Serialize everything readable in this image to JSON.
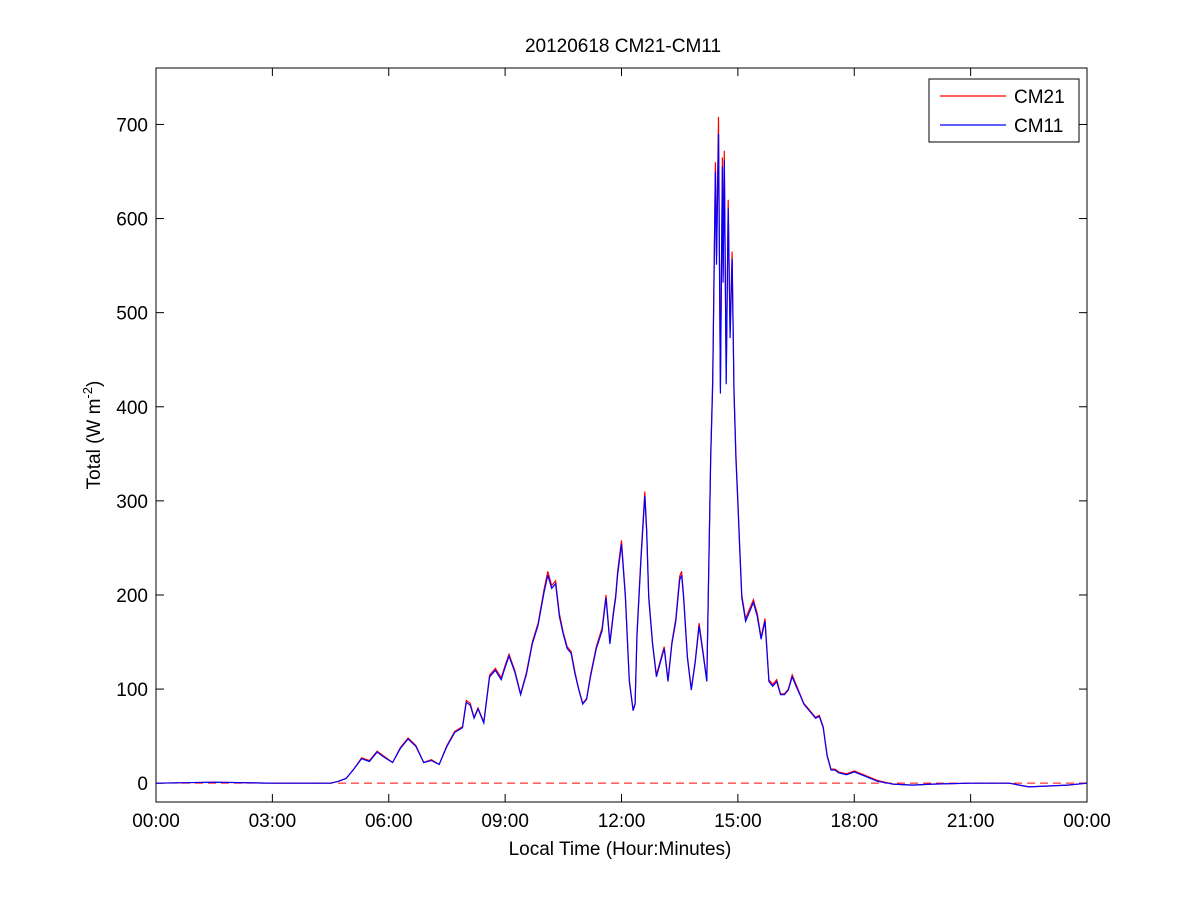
{
  "chart_data": {
    "type": "line",
    "title": "20120618 CM21-CM11",
    "xlabel": "Local Time (Hour:Minutes)",
    "ylabel": "Total (W m^-2)",
    "ylabel_parts": {
      "main": "Total (W m",
      "superscript": "-2",
      "close": ")"
    },
    "x_unit": "hours",
    "xlim": [
      0,
      24
    ],
    "ylim": [
      -20,
      760
    ],
    "x_ticks": [
      {
        "value": 0,
        "label": "00:00"
      },
      {
        "value": 3,
        "label": "03:00"
      },
      {
        "value": 6,
        "label": "06:00"
      },
      {
        "value": 9,
        "label": "09:00"
      },
      {
        "value": 12,
        "label": "12:00"
      },
      {
        "value": 15,
        "label": "15:00"
      },
      {
        "value": 18,
        "label": "18:00"
      },
      {
        "value": 21,
        "label": "21:00"
      },
      {
        "value": 24,
        "label": "00:00"
      }
    ],
    "y_ticks": [
      {
        "value": 0,
        "label": "0"
      },
      {
        "value": 100,
        "label": "100"
      },
      {
        "value": 200,
        "label": "200"
      },
      {
        "value": 300,
        "label": "300"
      },
      {
        "value": 400,
        "label": "400"
      },
      {
        "value": 500,
        "label": "500"
      },
      {
        "value": 600,
        "label": "600"
      },
      {
        "value": 700,
        "label": "700"
      }
    ],
    "grid": false,
    "legend_position": "top-right",
    "reference_line": {
      "y": 0,
      "color": "#ff0000",
      "style": "dashed"
    },
    "series": [
      {
        "name": "CM21",
        "color": "#ff0000",
        "x": [
          0,
          1.5,
          3,
          4.5,
          4.7,
          4.9,
          5.1,
          5.3,
          5.5,
          5.7,
          5.9,
          6.1,
          6.3,
          6.5,
          6.7,
          6.9,
          7.1,
          7.3,
          7.5,
          7.7,
          7.9,
          8.0,
          8.1,
          8.2,
          8.3,
          8.45,
          8.6,
          8.75,
          8.9,
          9.0,
          9.1,
          9.25,
          9.4,
          9.55,
          9.7,
          9.85,
          10.0,
          10.1,
          10.2,
          10.3,
          10.4,
          10.5,
          10.6,
          10.7,
          10.8,
          10.9,
          11.0,
          11.1,
          11.2,
          11.35,
          11.5,
          11.6,
          11.7,
          11.8,
          11.85,
          11.9,
          12.0,
          12.1,
          12.2,
          12.3,
          12.35,
          12.4,
          12.5,
          12.6,
          12.65,
          12.7,
          12.8,
          12.9,
          13.0,
          13.1,
          13.2,
          13.3,
          13.4,
          13.5,
          13.55,
          13.6,
          13.7,
          13.8,
          13.9,
          14.0,
          14.1,
          14.2,
          14.3,
          14.35,
          14.42,
          14.45,
          14.5,
          14.55,
          14.6,
          14.62,
          14.65,
          14.7,
          14.75,
          14.8,
          14.85,
          14.9,
          14.95,
          15.0,
          15.05,
          15.1,
          15.2,
          15.3,
          15.4,
          15.5,
          15.6,
          15.7,
          15.8,
          15.9,
          16.0,
          16.1,
          16.2,
          16.3,
          16.4,
          16.5,
          16.6,
          16.7,
          16.8,
          16.9,
          17.0,
          17.1,
          17.2,
          17.3,
          17.4,
          17.5,
          17.6,
          17.8,
          18.0,
          18.3,
          18.6,
          19.0,
          19.5,
          20.0,
          21.0,
          22.0,
          22.5,
          23.0,
          23.5,
          24.0
        ],
        "values": [
          0,
          1,
          0,
          0,
          2,
          5,
          15,
          27,
          24,
          34,
          28,
          22,
          38,
          48,
          40,
          22,
          25,
          20,
          40,
          55,
          60,
          88,
          85,
          70,
          80,
          65,
          115,
          122,
          112,
          125,
          137,
          120,
          95,
          118,
          150,
          170,
          205,
          225,
          210,
          215,
          180,
          160,
          145,
          140,
          118,
          100,
          85,
          90,
          115,
          145,
          165,
          200,
          150,
          185,
          200,
          225,
          258,
          200,
          110,
          78,
          85,
          160,
          240,
          310,
          270,
          200,
          150,
          115,
          130,
          145,
          110,
          150,
          175,
          220,
          225,
          200,
          135,
          100,
          130,
          170,
          140,
          110,
          350,
          430,
          660,
          560,
          708,
          420,
          665,
          540,
          672,
          430,
          620,
          480,
          565,
          420,
          350,
          300,
          250,
          200,
          175,
          185,
          195,
          180,
          155,
          175,
          110,
          105,
          110,
          95,
          95,
          100,
          115,
          105,
          95,
          85,
          80,
          75,
          70,
          72,
          60,
          30,
          15,
          15,
          12,
          10,
          13,
          8,
          3,
          -1,
          -2,
          -1,
          0,
          0,
          -4,
          -3,
          -2,
          0
        ]
      },
      {
        "name": "CM11",
        "color": "#0000ff",
        "x": [
          0,
          1.5,
          3,
          4.5,
          4.7,
          4.9,
          5.1,
          5.3,
          5.5,
          5.7,
          5.9,
          6.1,
          6.3,
          6.5,
          6.7,
          6.9,
          7.1,
          7.3,
          7.5,
          7.7,
          7.9,
          8.0,
          8.1,
          8.2,
          8.3,
          8.45,
          8.6,
          8.75,
          8.9,
          9.0,
          9.1,
          9.25,
          9.4,
          9.55,
          9.7,
          9.85,
          10.0,
          10.1,
          10.2,
          10.3,
          10.4,
          10.5,
          10.6,
          10.7,
          10.8,
          10.9,
          11.0,
          11.1,
          11.2,
          11.35,
          11.5,
          11.6,
          11.7,
          11.8,
          11.85,
          11.9,
          12.0,
          12.1,
          12.2,
          12.3,
          12.35,
          12.4,
          12.5,
          12.6,
          12.65,
          12.7,
          12.8,
          12.9,
          13.0,
          13.1,
          13.2,
          13.3,
          13.4,
          13.5,
          13.55,
          13.6,
          13.7,
          13.8,
          13.9,
          14.0,
          14.1,
          14.2,
          14.3,
          14.35,
          14.42,
          14.45,
          14.5,
          14.55,
          14.6,
          14.62,
          14.65,
          14.7,
          14.75,
          14.8,
          14.85,
          14.9,
          14.95,
          15.0,
          15.05,
          15.1,
          15.2,
          15.3,
          15.4,
          15.5,
          15.6,
          15.7,
          15.8,
          15.9,
          16.0,
          16.1,
          16.2,
          16.3,
          16.4,
          16.5,
          16.6,
          16.7,
          16.8,
          16.9,
          17.0,
          17.1,
          17.2,
          17.3,
          17.4,
          17.5,
          17.6,
          17.8,
          18.0,
          18.3,
          18.6,
          19.0,
          19.5,
          20.0,
          21.0,
          22.0,
          22.5,
          23.0,
          23.5,
          24.0
        ],
        "values": [
          0,
          1,
          0,
          0,
          2,
          5,
          15,
          26,
          23,
          33,
          27,
          22,
          37,
          47,
          39,
          22,
          24,
          20,
          39,
          54,
          59,
          86,
          83,
          69,
          79,
          64,
          113,
          120,
          110,
          123,
          135,
          118,
          94,
          116,
          148,
          168,
          202,
          221,
          207,
          212,
          177,
          158,
          143,
          138,
          116,
          99,
          84,
          89,
          113,
          143,
          162,
          197,
          148,
          182,
          197,
          221,
          254,
          197,
          108,
          77,
          84,
          157,
          236,
          305,
          266,
          197,
          148,
          113,
          128,
          143,
          108,
          148,
          172,
          216,
          221,
          197,
          133,
          99,
          128,
          167,
          138,
          108,
          344,
          423,
          650,
          551,
          690,
          414,
          655,
          532,
          662,
          424,
          611,
          473,
          557,
          414,
          345,
          296,
          246,
          197,
          172,
          182,
          192,
          177,
          153,
          172,
          108,
          103,
          108,
          94,
          94,
          99,
          113,
          103,
          94,
          84,
          79,
          74,
          69,
          71,
          59,
          29,
          14,
          14,
          11,
          9,
          12,
          7,
          2,
          -1,
          -2,
          -1,
          0,
          0,
          -4,
          -3,
          -2,
          0
        ]
      }
    ]
  }
}
